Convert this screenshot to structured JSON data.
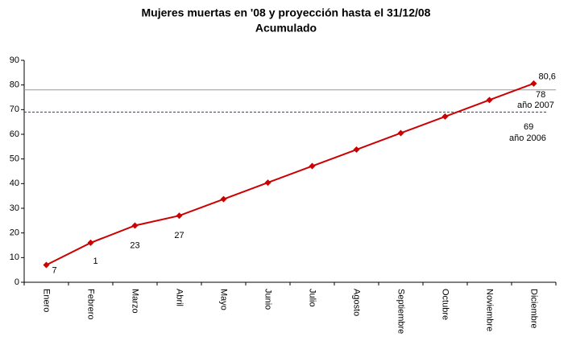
{
  "chart_data": {
    "type": "line",
    "title": "Mujeres muertas en '08 y proyección hasta el 31/12/08",
    "subtitle": "Acumulado",
    "categories": [
      "Enero",
      "Febrero",
      "Marzo",
      "Abril",
      "Mayo",
      "Junio",
      "Julio",
      "Agosto",
      "Septiembre",
      "Octubre",
      "Noviembre",
      "Diciembre"
    ],
    "values": [
      7,
      16,
      23,
      27,
      33.7,
      40.4,
      47.1,
      53.8,
      60.5,
      67.2,
      73.9,
      80.6
    ],
    "value_labels": [
      "7",
      null,
      "23",
      "27",
      null,
      null,
      null,
      null,
      null,
      null,
      null,
      "80,6"
    ],
    "color": "#cc0000",
    "annotations": [
      {
        "text": "1",
        "category": "Febrero"
      }
    ],
    "reference_lines": [
      {
        "value": 78,
        "label": "78",
        "sublabel": "año 2007",
        "style": "solid",
        "color": "#999999"
      },
      {
        "value": 69,
        "label": "69",
        "sublabel": "año 2006",
        "style": "dashed",
        "color": "#333399"
      }
    ],
    "ylim": [
      0,
      90
    ],
    "yticks": [
      0,
      10,
      20,
      30,
      40,
      50,
      60,
      70,
      80,
      90
    ],
    "grid": false
  }
}
